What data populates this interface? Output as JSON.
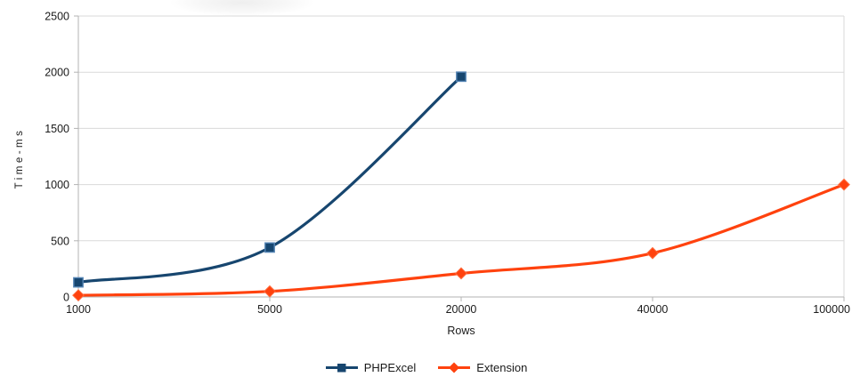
{
  "chart_data": {
    "type": "line",
    "title": "",
    "xlabel": "Rows",
    "ylabel": "Time-ms",
    "categories": [
      1000,
      5000,
      20000,
      40000,
      100000
    ],
    "series": [
      {
        "name": "PHPExcel",
        "color": "#17466F",
        "marker": "square",
        "marker_stroke": "#5585B5",
        "values": [
          130,
          440,
          1960,
          null,
          null
        ]
      },
      {
        "name": "Extension",
        "color": "#FF420E",
        "marker": "diamond",
        "marker_stroke": "#FF6A3C",
        "values": [
          15,
          50,
          210,
          390,
          1000
        ]
      }
    ],
    "ylim": [
      0,
      2500
    ],
    "y_ticks": [
      0,
      500,
      1000,
      1500,
      2000,
      2500
    ],
    "grid": "horizontal",
    "smoothed_lines": true,
    "legend_position": "bottom",
    "colors": {
      "gridline": "#d9d9d9",
      "axis": "#b3b3b3",
      "tick_label": "#1a1a1a"
    }
  }
}
